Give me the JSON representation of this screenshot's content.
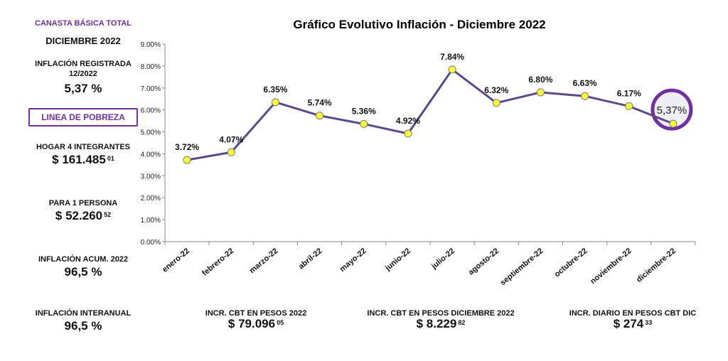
{
  "sidebar": {
    "header": "CANASTA BÁSICA TOTAL",
    "month": "DICIEMBRE 2022",
    "inflation_label": "INFLACIÓN REGISTRADA",
    "inflation_period": "12/2022",
    "inflation_value": "5,37 %",
    "poverty_button": "LINEA DE POBREZA",
    "household_label": "HOGAR 4 INTEGRANTES",
    "household_value": "$ 161.485",
    "household_cents": "01",
    "person_label": "PARA 1 PERSONA",
    "person_value": "$ 52.260",
    "person_cents": "52",
    "accum_label": "INFLACIÓN ACUM. 2022",
    "accum_value": "96,5 %",
    "yoy_label": "INFLACIÓN INTERANUAL",
    "yoy_value": "96,5 %"
  },
  "bottom": {
    "cbt_year_label": "INCR. CBT EN PESOS 2022",
    "cbt_year_value": "$ 79.096",
    "cbt_year_cents": "05",
    "cbt_dec_label": "INCR. CBT EN PESOS DICIEMBRE 2022",
    "cbt_dec_value": "$ 8.229",
    "cbt_dec_cents": "82",
    "cbt_daily_label": "INCR. DIARIO EN PESOS CBT DIC",
    "cbt_daily_value": "$ 274",
    "cbt_daily_cents": "33"
  },
  "chart_data": {
    "type": "line",
    "title": "Gráfico Evolutivo Inflación - Diciembre 2022",
    "categories": [
      "enero-22",
      "febrero-22",
      "marzo-22",
      "abril-22",
      "mayo-22",
      "junio-22",
      "julio-22",
      "agosto-22",
      "septiembre-22",
      "octubre-22",
      "noviembre-22",
      "diciembre-22"
    ],
    "values": [
      3.72,
      4.07,
      6.35,
      5.74,
      5.36,
      4.92,
      7.84,
      6.32,
      6.8,
      6.63,
      6.17,
      5.37
    ],
    "data_labels": [
      "3.72%",
      "4.07%",
      "6.35%",
      "5.74%",
      "5.36%",
      "4.92%",
      "7.84%",
      "6.32%",
      "6.80%",
      "6.63%",
      "6.17%",
      ""
    ],
    "yticks": [
      "0.00%",
      "1.00%",
      "2.00%",
      "3.00%",
      "4.00%",
      "5.00%",
      "6.00%",
      "7.00%",
      "8.00%",
      "9.00%"
    ],
    "ylim": [
      0,
      9
    ],
    "highlight_label": "5,37%",
    "line_color": "#5b4a8a",
    "marker_color": "#ffff33",
    "highlight_color": "#7030a0",
    "grid": false
  }
}
